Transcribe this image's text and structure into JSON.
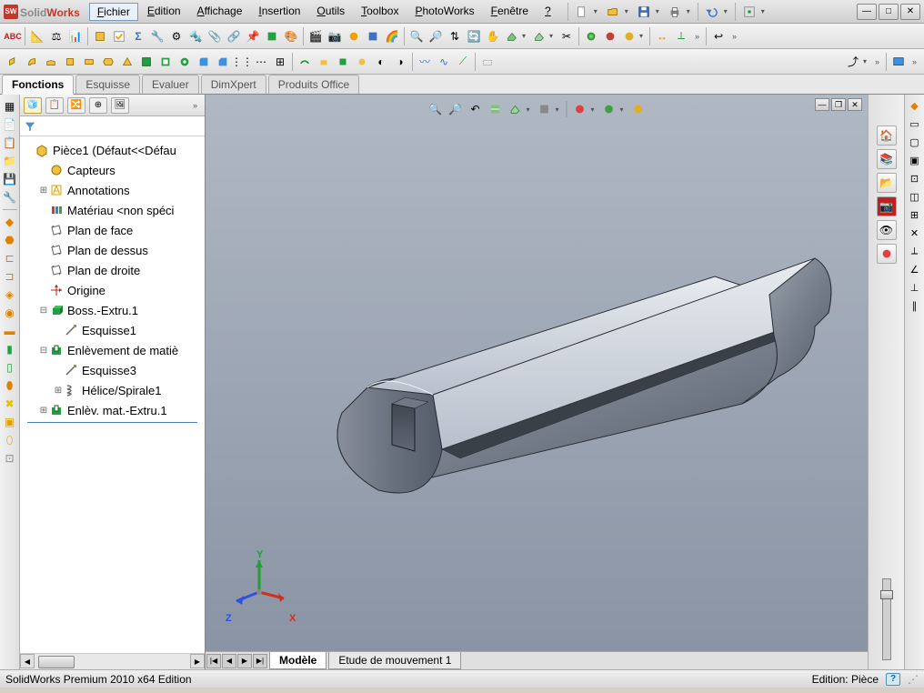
{
  "app": {
    "logo_prefix": "Solid",
    "logo_suffix": "Works",
    "logo_badge": "SW"
  },
  "menu": {
    "items": [
      "Fichier",
      "Edition",
      "Affichage",
      "Insertion",
      "Outils",
      "Toolbox",
      "PhotoWorks",
      "Fenêtre",
      "?"
    ],
    "active_index": 0
  },
  "qat_icons": [
    "new",
    "open",
    "save",
    "print",
    "undo",
    "redo",
    "rebuild",
    "options"
  ],
  "tabs": {
    "items": [
      "Fonctions",
      "Esquisse",
      "Evaluer",
      "DimXpert",
      "Produits Office"
    ],
    "active_index": 0
  },
  "tree": {
    "root": "Pièce1  (Défaut<<Défau",
    "items": [
      {
        "indent": 1,
        "exp": "",
        "icon": "sensor",
        "icon_color": "#e0a000",
        "label": "Capteurs"
      },
      {
        "indent": 1,
        "exp": "+",
        "icon": "annot",
        "icon_color": "#e0a000",
        "label": "Annotations"
      },
      {
        "indent": 1,
        "exp": "",
        "icon": "material",
        "icon_color": "#2060c0",
        "label": "Matériau <non spéci"
      },
      {
        "indent": 1,
        "exp": "",
        "icon": "plane",
        "icon_color": "#666666",
        "label": "Plan de face"
      },
      {
        "indent": 1,
        "exp": "",
        "icon": "plane",
        "icon_color": "#666666",
        "label": "Plan de dessus"
      },
      {
        "indent": 1,
        "exp": "",
        "icon": "plane",
        "icon_color": "#666666",
        "label": "Plan de droite"
      },
      {
        "indent": 1,
        "exp": "",
        "icon": "origin",
        "icon_color": "#c02020",
        "label": "Origine"
      },
      {
        "indent": 1,
        "exp": "-",
        "icon": "extrude",
        "icon_color": "#209040",
        "label": "Boss.-Extru.1"
      },
      {
        "indent": 2,
        "exp": "",
        "icon": "sketch",
        "icon_color": "#666666",
        "label": "Esquisse1"
      },
      {
        "indent": 1,
        "exp": "-",
        "icon": "cut",
        "icon_color": "#209040",
        "label": "Enlèvement de matiè"
      },
      {
        "indent": 2,
        "exp": "",
        "icon": "sketch",
        "icon_color": "#666666",
        "label": "Esquisse3"
      },
      {
        "indent": 2,
        "exp": "+",
        "icon": "helix",
        "icon_color": "#666666",
        "label": "Hélice/Spirale1"
      },
      {
        "indent": 1,
        "exp": "+",
        "icon": "cut",
        "icon_color": "#209040",
        "label": "Enlèv. mat.-Extru.1"
      }
    ]
  },
  "bottom_tabs": {
    "items": [
      "Modèle",
      "Etude de mouvement 1"
    ],
    "active_index": 0
  },
  "triad": {
    "x": "X",
    "y": "Y",
    "z": "Z",
    "x_color": "#d03020",
    "y_color": "#20a030",
    "z_color": "#3050e0"
  },
  "status": {
    "left": "SolidWorks Premium 2010 x64 Edition",
    "right": "Edition: Pièce",
    "help": "?"
  },
  "right_panel_icons": [
    "home",
    "open",
    "folder",
    "photo",
    "layers",
    "appearance"
  ],
  "colors": {
    "viewport_top": "#b0b8c4",
    "viewport_bottom": "#8a94a4",
    "model_light": "#d8dce2",
    "model_mid": "#98a0ac",
    "model_dark": "#5a6270",
    "model_edge": "#202428"
  }
}
